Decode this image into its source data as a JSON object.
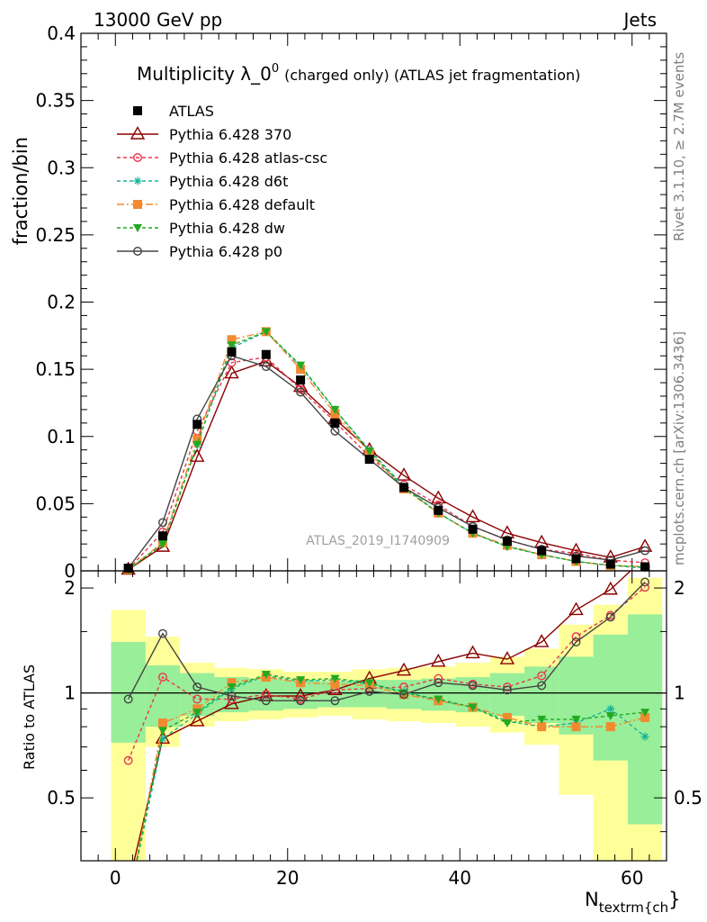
{
  "header": {
    "left": "13000 GeV pp",
    "right": "Jets",
    "side_rivet": "Rivet 3.1.10, ≥ 2.7M events",
    "side_mcplots": "mcplots.cern.ch [arXiv:1306.3436]"
  },
  "chart_data": [
    {
      "type": "line",
      "title": "Multiplicity λ_0",
      "title_sup": "0",
      "title_suffix": "(charged only) (ATLAS jet fragmentation)",
      "ylabel": "fraction/bin",
      "watermark": "ATLAS_2019_I1740909",
      "xlim": [
        -4,
        64
      ],
      "ylim": [
        0,
        0.4
      ],
      "yticks": [
        0,
        0.05,
        0.1,
        0.15,
        0.2,
        0.25,
        0.3,
        0.35,
        0.4
      ],
      "ytick_labels": [
        "0",
        "0.05",
        "0.1",
        "0.15",
        "0.2",
        "0.25",
        "0.3",
        "0.35",
        "0.4"
      ],
      "x": [
        1.5,
        5.5,
        9.5,
        13.5,
        17.5,
        21.5,
        25.5,
        29.5,
        33.5,
        37.5,
        41.5,
        45.5,
        49.5,
        53.5,
        57.5,
        61.5
      ],
      "data": {
        "name": "ATLAS",
        "values": [
          0.002,
          0.026,
          0.109,
          0.163,
          0.161,
          0.142,
          0.11,
          0.083,
          0.062,
          0.045,
          0.031,
          0.022,
          0.015,
          0.009,
          0.005,
          0.003
        ]
      },
      "series": [
        {
          "name": "Pythia 6.428 370",
          "color": "#8b0000",
          "dash": "",
          "marker": "triangle-open",
          "values": [
            0.001,
            0.018,
            0.085,
            0.147,
            0.156,
            0.137,
            0.113,
            0.09,
            0.071,
            0.054,
            0.04,
            0.028,
            0.021,
            0.015,
            0.01,
            0.018
          ]
        },
        {
          "name": "Pythia 6.428 atlas-csc",
          "color": "#e8384f",
          "dash": "4,3",
          "marker": "circle-open",
          "values": [
            0.001,
            0.029,
            0.104,
            0.155,
            0.159,
            0.135,
            0.111,
            0.085,
            0.064,
            0.049,
            0.033,
            0.023,
            0.016,
            0.013,
            0.008,
            0.006
          ]
        },
        {
          "name": "Pythia 6.428 d6t",
          "color": "#18b39a",
          "dash": "4,3",
          "marker": "star",
          "values": [
            0.001,
            0.02,
            0.094,
            0.166,
            0.178,
            0.152,
            0.12,
            0.09,
            0.063,
            0.043,
            0.028,
            0.018,
            0.012,
            0.007,
            0.004,
            0.002
          ]
        },
        {
          "name": "Pythia 6.428 default",
          "color": "#f28a30",
          "dash": "8,3,2,3",
          "marker": "square",
          "values": [
            0.001,
            0.021,
            0.098,
            0.172,
            0.178,
            0.15,
            0.117,
            0.088,
            0.061,
            0.043,
            0.028,
            0.019,
            0.012,
            0.007,
            0.004,
            0.003
          ]
        },
        {
          "name": "Pythia 6.428 dw",
          "color": "#22aa22",
          "dash": "4,3",
          "marker": "triangle-down",
          "values": [
            0.001,
            0.02,
            0.094,
            0.168,
            0.178,
            0.153,
            0.12,
            0.089,
            0.062,
            0.043,
            0.028,
            0.018,
            0.012,
            0.007,
            0.004,
            0.003
          ]
        },
        {
          "name": "Pythia 6.428 p0",
          "color": "#444444",
          "dash": "",
          "marker": "circle-open",
          "values": [
            0.002,
            0.036,
            0.113,
            0.16,
            0.152,
            0.133,
            0.104,
            0.083,
            0.062,
            0.047,
            0.033,
            0.023,
            0.016,
            0.011,
            0.008,
            0.015
          ]
        }
      ]
    },
    {
      "type": "line",
      "ylabel": "Ratio to ATLAS",
      "xlabel": "N",
      "xlabel_sub": "textrm{ch",
      "xlabel_tail": "}",
      "xlim": [
        -4,
        64
      ],
      "ylim": [
        0.33,
        2.24
      ],
      "xticks": [
        0,
        20,
        40,
        60
      ],
      "yticks": [
        0.5,
        1,
        2
      ],
      "ytick_labels": [
        "0.5",
        "1",
        "2"
      ],
      "bin_edges": [
        -0.5,
        3.5,
        7.5,
        11.5,
        15.5,
        19.5,
        23.5,
        27.5,
        31.5,
        35.5,
        39.5,
        43.5,
        47.5,
        51.5,
        55.5,
        59.5,
        63.5
      ],
      "band_inner": [
        [
          0.72,
          1.4
        ],
        [
          0.8,
          1.2
        ],
        [
          0.86,
          1.14
        ],
        [
          0.88,
          1.11
        ],
        [
          0.89,
          1.1
        ],
        [
          0.9,
          1.09
        ],
        [
          0.91,
          1.08
        ],
        [
          0.91,
          1.09
        ],
        [
          0.9,
          1.09
        ],
        [
          0.89,
          1.1
        ],
        [
          0.88,
          1.11
        ],
        [
          0.86,
          1.14
        ],
        [
          0.82,
          1.19
        ],
        [
          0.76,
          1.27
        ],
        [
          0.64,
          1.47
        ],
        [
          0.42,
          1.68
        ]
      ],
      "band_outer": [
        [
          0.33,
          1.73
        ],
        [
          0.7,
          1.45
        ],
        [
          0.8,
          1.22
        ],
        [
          0.83,
          1.18
        ],
        [
          0.84,
          1.17
        ],
        [
          0.85,
          1.15
        ],
        [
          0.86,
          1.15
        ],
        [
          0.84,
          1.17
        ],
        [
          0.83,
          1.18
        ],
        [
          0.82,
          1.19
        ],
        [
          0.8,
          1.22
        ],
        [
          0.77,
          1.27
        ],
        [
          0.71,
          1.34
        ],
        [
          0.51,
          1.57
        ],
        [
          0.33,
          1.79
        ],
        [
          0.33,
          2.14
        ]
      ],
      "series": [
        {
          "name": "Pythia 6.428 370",
          "values": [
            0.28,
            0.74,
            0.83,
            0.93,
            0.98,
            0.98,
            1.02,
            1.1,
            1.16,
            1.23,
            1.3,
            1.25,
            1.4,
            1.73,
            1.98,
            2.45
          ]
        },
        {
          "name": "Pythia 6.428 atlas-csc",
          "values": [
            0.64,
            1.11,
            0.96,
            0.96,
            0.99,
            0.96,
            1.02,
            1.03,
            1.04,
            1.1,
            1.06,
            1.04,
            1.12,
            1.45,
            1.67,
            2.01
          ]
        },
        {
          "name": "Pythia 6.428 d6t",
          "values": [
            0.25,
            0.74,
            0.87,
            1.03,
            1.12,
            1.08,
            1.09,
            1.06,
            1.01,
            0.95,
            0.91,
            0.83,
            0.8,
            0.82,
            0.9,
            0.75
          ]
        },
        {
          "name": "Pythia 6.428 default",
          "values": [
            0.25,
            0.82,
            0.9,
            1.07,
            1.11,
            1.07,
            1.06,
            1.05,
            0.99,
            0.95,
            0.91,
            0.85,
            0.8,
            0.8,
            0.8,
            0.85
          ]
        },
        {
          "name": "Pythia 6.428 dw",
          "values": [
            0.25,
            0.78,
            0.88,
            1.04,
            1.13,
            1.09,
            1.1,
            1.07,
            1.0,
            0.96,
            0.91,
            0.82,
            0.84,
            0.84,
            0.86,
            0.88
          ]
        },
        {
          "name": "Pythia 6.428 p0",
          "values": [
            0.96,
            1.48,
            1.04,
            0.98,
            0.95,
            0.95,
            0.95,
            1.01,
            0.99,
            1.07,
            1.05,
            1.02,
            1.05,
            1.4,
            1.65,
            2.08
          ]
        }
      ]
    }
  ]
}
